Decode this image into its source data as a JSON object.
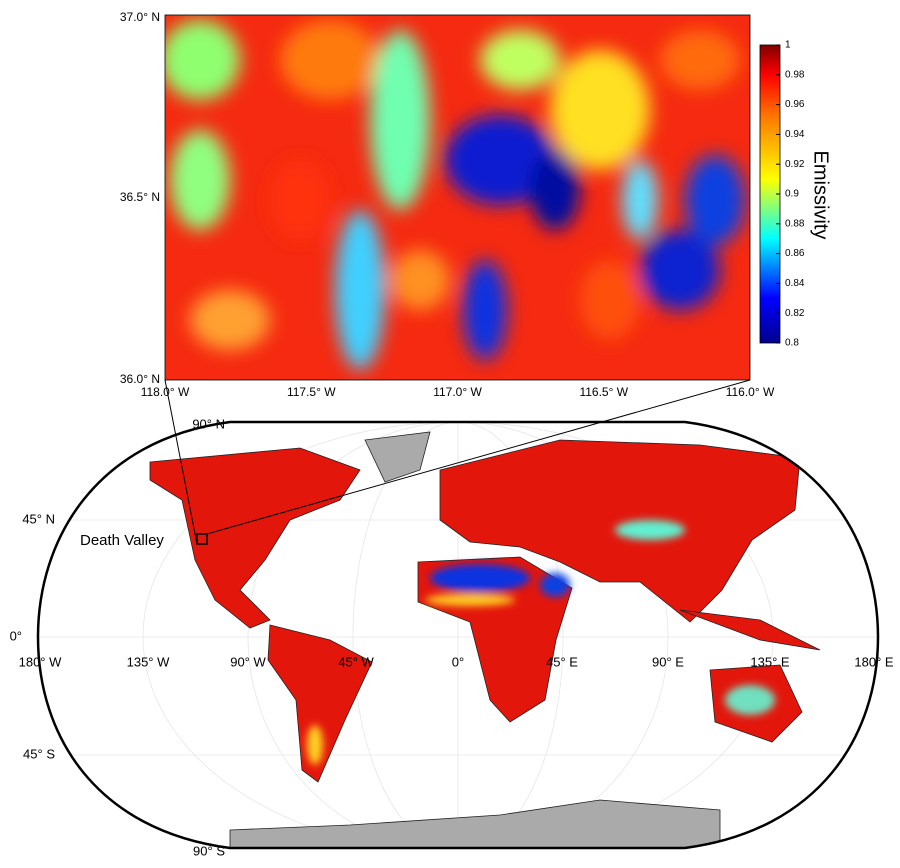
{
  "inset_map": {
    "lat_labels": [
      "37.0° N",
      "36.5° N",
      "36.0° N"
    ],
    "lon_labels": [
      "118.0° W",
      "117.5° W",
      "117.0° W",
      "116.5° W",
      "116.0° W"
    ]
  },
  "colorbar": {
    "label": "Emissivity",
    "lim": [
      0.8,
      1
    ],
    "ticks": [
      0.8,
      0.82,
      0.84,
      0.86,
      0.88,
      0.9,
      0.92,
      0.94,
      0.96,
      0.98,
      1
    ]
  },
  "world_map": {
    "annotation": "Death Valley",
    "lat_labels": [
      "90° N",
      "45° N",
      "0°",
      "45° S",
      "90° S"
    ],
    "lon_labels": [
      "180° W",
      "135° W",
      "90° W",
      "45° W",
      "0°",
      "45° E",
      "90° E",
      "135° E",
      "180° E"
    ]
  }
}
